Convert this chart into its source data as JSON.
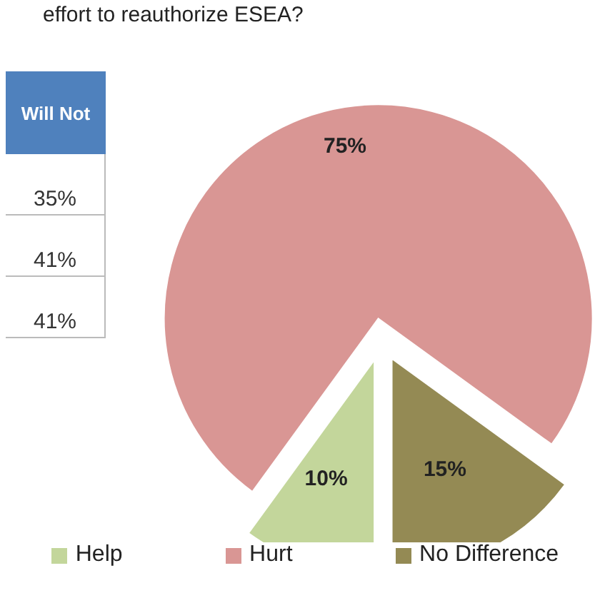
{
  "chart_data": {
    "type": "pie",
    "title": "effort to reauthorize ESEA?",
    "categories": [
      "Help",
      "Hurt",
      "No Difference"
    ],
    "values": [
      10,
      75,
      15
    ],
    "value_labels": [
      "10%",
      "75%",
      "15%"
    ],
    "colors": [
      "#c3d69b",
      "#d99694",
      "#948a54"
    ],
    "legend": "bottom",
    "annotations": [
      "Will Not",
      "35%",
      "41%",
      "41%"
    ]
  }
}
